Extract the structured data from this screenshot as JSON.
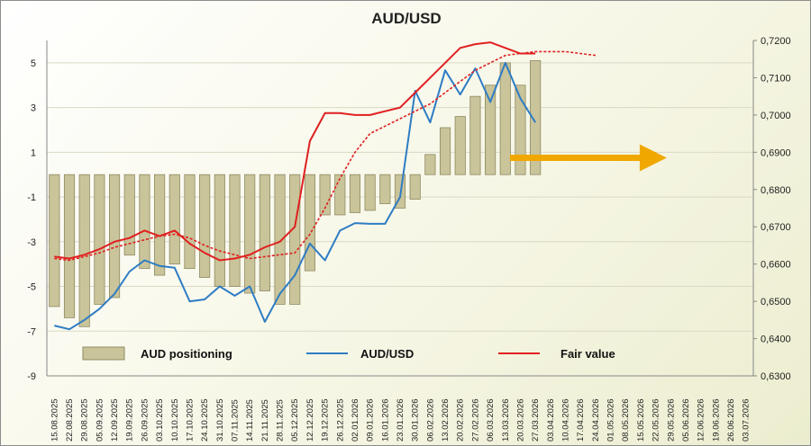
{
  "chart_data": {
    "type": "bar",
    "title": "AUD/USD",
    "y_left": {
      "ticks": [
        "5",
        "3",
        "1",
        "-1",
        "-3",
        "-5",
        "-7",
        "-9"
      ],
      "range": [
        -9,
        6
      ]
    },
    "y_right": {
      "ticks": [
        "0,7200",
        "0,7100",
        "0,7000",
        "0,6900",
        "0,6800",
        "0,6700",
        "0,6600",
        "0,6500",
        "0,6400",
        "0,6300"
      ],
      "range": [
        0.63,
        0.72
      ]
    },
    "x_labels": [
      "15.08.2025",
      "22.08.2025",
      "29.08.2025",
      "05.09.2025",
      "12.09.2025",
      "19.09.2025",
      "26.09.2025",
      "03.10.2025",
      "10.10.2025",
      "17.10.2025",
      "24.10.2025",
      "31.10.2025",
      "07.11.2025",
      "14.11.2025",
      "21.11.2025",
      "28.11.2025",
      "05.12.2025",
      "12.12.2025",
      "19.12.2025",
      "26.12.2025",
      "02.01.2026",
      "09.01.2026",
      "16.01.2026",
      "23.01.2026",
      "30.01.2026",
      "06.02.2026",
      "13.02.2026",
      "20.02.2026",
      "27.02.2026",
      "06.03.2026",
      "13.03.2026",
      "20.03.2026",
      "27.03.2026",
      "03.04.2026",
      "10.04.2026",
      "17.04.2026",
      "24.04.2026",
      "01.05.2026",
      "08.05.2026",
      "15.05.2026",
      "22.05.2026",
      "29.05.2026",
      "05.06.2026",
      "12.06.2026",
      "19.06.2026",
      "26.06.2026",
      "03.07.2026"
    ],
    "series": [
      {
        "name": "AUD positioning",
        "axis": "left",
        "type": "bar",
        "color": "#c9c49a",
        "values": [
          -5.9,
          -6.4,
          -6.8,
          -5.8,
          -5.5,
          -3.6,
          -4.2,
          -4.5,
          -4.0,
          -4.2,
          -4.6,
          -5.0,
          -5.0,
          -5.3,
          -5.2,
          -5.8,
          -5.8,
          -4.3,
          -1.8,
          -1.8,
          -1.7,
          -1.6,
          -1.3,
          -1.5,
          -1.1,
          0.9,
          2.1,
          2.6,
          3.5,
          4.0,
          5.0,
          4.0,
          5.1
        ]
      },
      {
        "name": "AUD/USD",
        "axis": "right",
        "type": "line",
        "color": "#2e7cc4",
        "values": [
          0.6435,
          0.6425,
          0.645,
          0.648,
          0.652,
          0.658,
          0.661,
          0.6595,
          0.659,
          0.65,
          0.6505,
          0.654,
          0.6515,
          0.654,
          0.6445,
          0.652,
          0.657,
          0.6655,
          0.661,
          0.669,
          0.671,
          0.6708,
          0.6708,
          0.678,
          0.7065,
          0.698,
          0.712,
          0.7055,
          0.7125,
          0.7035,
          0.714,
          0.7045,
          0.698
        ]
      },
      {
        "name": "Fair value",
        "axis": "right",
        "type": "line",
        "color": "#e02020",
        "values": [
          0.662,
          0.6615,
          0.6625,
          0.664,
          0.666,
          0.667,
          0.669,
          0.6675,
          0.669,
          0.6655,
          0.663,
          0.661,
          0.6615,
          0.6625,
          0.6645,
          0.666,
          0.67,
          0.693,
          0.7005,
          0.7005,
          0.7,
          0.7,
          0.701,
          0.702,
          0.706,
          0.71,
          0.714,
          0.718,
          0.719,
          0.7195,
          0.718,
          0.7165,
          0.7165
        ]
      },
      {
        "name": "Fair value forecast",
        "axis": "right",
        "type": "line",
        "style": "dashed",
        "color": "#e02020",
        "values": [
          0.6615,
          0.661,
          0.662,
          0.663,
          0.6645,
          0.6655,
          0.6665,
          0.6675,
          0.668,
          0.667,
          0.665,
          0.6635,
          0.6625,
          0.6615,
          0.662,
          0.6625,
          0.663,
          0.668,
          0.675,
          0.683,
          0.69,
          0.695,
          0.697,
          0.699,
          0.701,
          0.703,
          0.706,
          0.709,
          0.712,
          0.714,
          0.716,
          0.7165,
          0.717,
          0.717,
          0.717,
          0.7165,
          0.716
        ]
      }
    ],
    "legend": [
      "AUD positioning",
      "AUD/USD",
      "Fair value"
    ],
    "legend_position": "bottom",
    "grid": true,
    "annotation": {
      "type": "arrow",
      "direction": "right",
      "color": "#f0a800",
      "at_index": 40.5,
      "at_y": 0.6885
    }
  }
}
